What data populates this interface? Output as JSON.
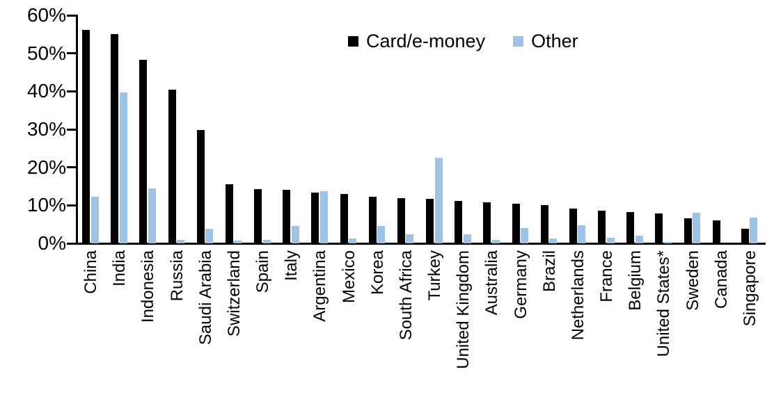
{
  "chart_data": {
    "type": "bar",
    "title": "",
    "xlabel": "",
    "ylabel": "",
    "ylim": [
      0,
      60
    ],
    "ytick_labels": [
      "0%",
      "10%",
      "20%",
      "30%",
      "40%",
      "50%",
      "60%"
    ],
    "ytick_values": [
      0,
      10,
      20,
      30,
      40,
      50,
      60
    ],
    "grid": false,
    "legend_position": "top-center",
    "categories": [
      "China",
      "India",
      "Indonesia",
      "Russia",
      "Saudi Arabia",
      "Switzerland",
      "Spain",
      "Italy",
      "Argentina",
      "Mexico",
      "Korea",
      "South Africa",
      "Turkey",
      "United Kingdom",
      "Australia",
      "Germany",
      "Brazil",
      "Netherlands",
      "France",
      "Belgium",
      "United States*",
      "Sweden",
      "Canada",
      "Singapore"
    ],
    "series": [
      {
        "name": "Card/e-money",
        "color": "#000000",
        "values": [
          56.2,
          55.0,
          48.3,
          40.5,
          29.8,
          15.6,
          14.2,
          14.1,
          13.4,
          12.9,
          12.2,
          11.8,
          11.7,
          11.2,
          10.8,
          10.5,
          10.0,
          9.2,
          8.6,
          8.2,
          7.9,
          6.5,
          6.0,
          3.8
        ]
      },
      {
        "name": "Other",
        "color": "#9DC3E6",
        "values": [
          12.3,
          39.7,
          14.5,
          1.0,
          3.9,
          0.8,
          1.0,
          4.5,
          13.8,
          1.2,
          4.6,
          2.4,
          22.5,
          2.4,
          1.0,
          4.0,
          1.2,
          4.8,
          1.5,
          2.0,
          0.3,
          8.1,
          0.0,
          6.8
        ]
      }
    ]
  }
}
